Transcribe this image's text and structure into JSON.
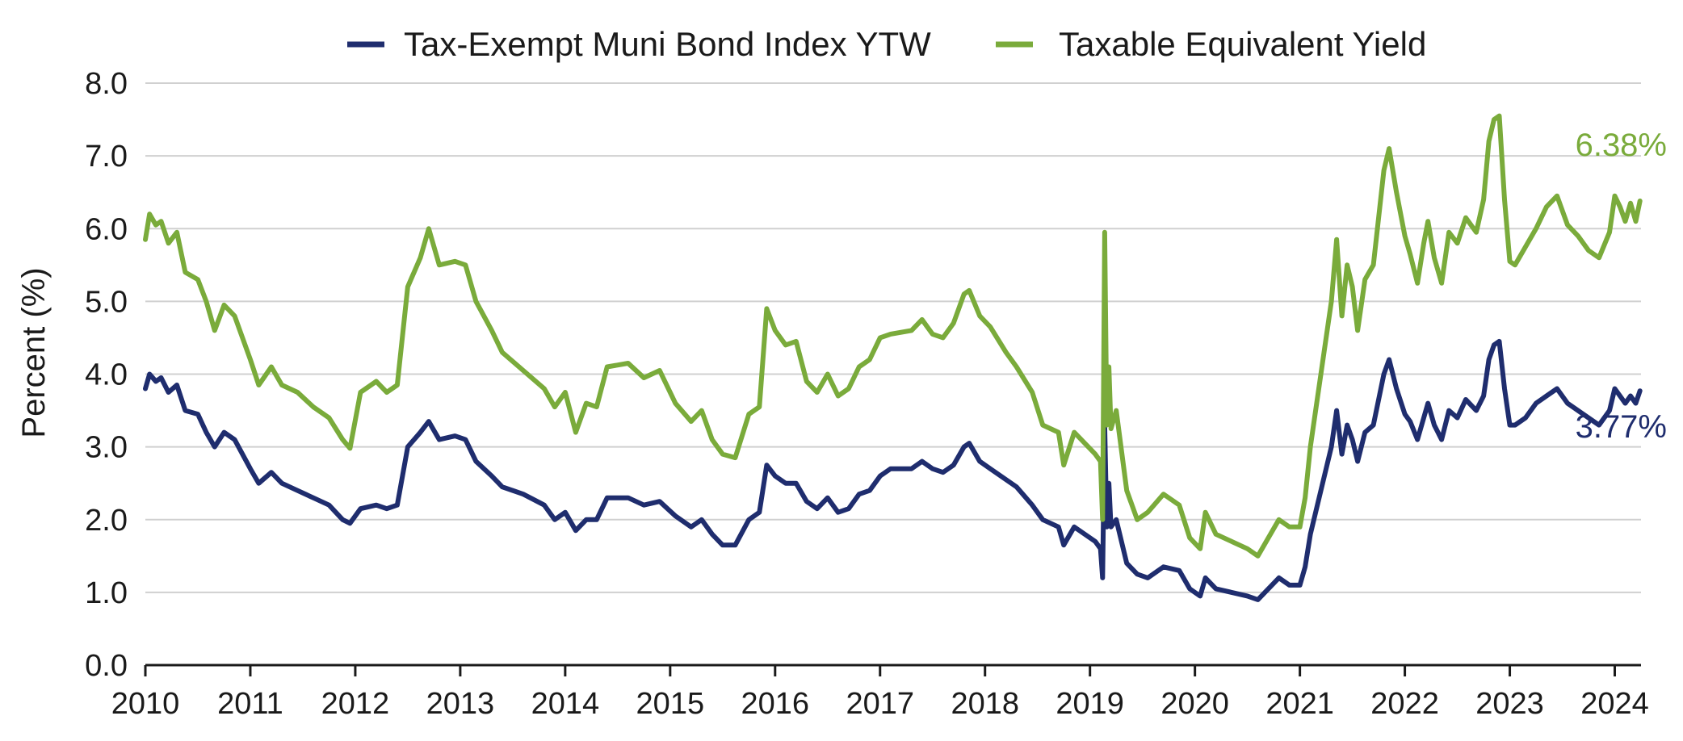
{
  "chart_data": {
    "type": "line",
    "title": "",
    "xlabel": "",
    "ylabel": "Percent (%)",
    "ylim": [
      0,
      8
    ],
    "y_ticks": [
      "0.0",
      "1.0",
      "2.0",
      "3.0",
      "4.0",
      "5.0",
      "6.0",
      "7.0",
      "8.0"
    ],
    "x_ticks": [
      "2010",
      "2011",
      "2012",
      "2013",
      "2014",
      "2015",
      "2016",
      "2017",
      "2018",
      "2019",
      "2020",
      "2021",
      "2022",
      "2023",
      "2024"
    ],
    "xlim": [
      2010.0,
      2024.25
    ],
    "grid": "horizontal",
    "legend_position": "top-center",
    "series": [
      {
        "name": "Tax-Exempt Muni Bond Index YTW",
        "color": "#1f2d6e",
        "end_label": "3.77%",
        "points": [
          [
            2010.0,
            3.8
          ],
          [
            2010.04,
            4.0
          ],
          [
            2010.1,
            3.9
          ],
          [
            2010.15,
            3.95
          ],
          [
            2010.22,
            3.75
          ],
          [
            2010.3,
            3.85
          ],
          [
            2010.38,
            3.5
          ],
          [
            2010.5,
            3.45
          ],
          [
            2010.58,
            3.2
          ],
          [
            2010.66,
            3.0
          ],
          [
            2010.75,
            3.2
          ],
          [
            2010.85,
            3.1
          ],
          [
            2011.0,
            2.7
          ],
          [
            2011.08,
            2.5
          ],
          [
            2011.2,
            2.65
          ],
          [
            2011.3,
            2.5
          ],
          [
            2011.45,
            2.4
          ],
          [
            2011.6,
            2.3
          ],
          [
            2011.75,
            2.2
          ],
          [
            2011.88,
            2.0
          ],
          [
            2011.95,
            1.95
          ],
          [
            2012.05,
            2.15
          ],
          [
            2012.2,
            2.2
          ],
          [
            2012.3,
            2.15
          ],
          [
            2012.4,
            2.2
          ],
          [
            2012.5,
            3.0
          ],
          [
            2012.62,
            3.2
          ],
          [
            2012.7,
            3.35
          ],
          [
            2012.8,
            3.1
          ],
          [
            2012.95,
            3.15
          ],
          [
            2013.05,
            3.1
          ],
          [
            2013.15,
            2.8
          ],
          [
            2013.3,
            2.6
          ],
          [
            2013.4,
            2.45
          ],
          [
            2013.6,
            2.35
          ],
          [
            2013.8,
            2.2
          ],
          [
            2013.9,
            2.0
          ],
          [
            2014.0,
            2.1
          ],
          [
            2014.1,
            1.85
          ],
          [
            2014.2,
            2.0
          ],
          [
            2014.3,
            2.0
          ],
          [
            2014.4,
            2.3
          ],
          [
            2014.6,
            2.3
          ],
          [
            2014.75,
            2.2
          ],
          [
            2014.9,
            2.25
          ],
          [
            2015.05,
            2.05
          ],
          [
            2015.2,
            1.9
          ],
          [
            2015.3,
            2.0
          ],
          [
            2015.4,
            1.8
          ],
          [
            2015.5,
            1.65
          ],
          [
            2015.62,
            1.65
          ],
          [
            2015.75,
            2.0
          ],
          [
            2015.85,
            2.1
          ],
          [
            2015.92,
            2.75
          ],
          [
            2016.0,
            2.6
          ],
          [
            2016.1,
            2.5
          ],
          [
            2016.2,
            2.5
          ],
          [
            2016.3,
            2.25
          ],
          [
            2016.4,
            2.15
          ],
          [
            2016.5,
            2.3
          ],
          [
            2016.6,
            2.1
          ],
          [
            2016.7,
            2.15
          ],
          [
            2016.8,
            2.35
          ],
          [
            2016.9,
            2.4
          ],
          [
            2017.0,
            2.6
          ],
          [
            2017.1,
            2.7
          ],
          [
            2017.3,
            2.7
          ],
          [
            2017.4,
            2.8
          ],
          [
            2017.5,
            2.7
          ],
          [
            2017.6,
            2.65
          ],
          [
            2017.7,
            2.75
          ],
          [
            2017.8,
            3.0
          ],
          [
            2017.85,
            3.05
          ],
          [
            2017.95,
            2.8
          ],
          [
            2018.05,
            2.7
          ],
          [
            2018.2,
            2.55
          ],
          [
            2018.3,
            2.45
          ],
          [
            2018.45,
            2.2
          ],
          [
            2018.55,
            2.0
          ],
          [
            2018.7,
            1.9
          ],
          [
            2018.75,
            1.65
          ],
          [
            2018.85,
            1.9
          ],
          [
            2018.95,
            1.8
          ],
          [
            2019.05,
            1.7
          ],
          [
            2019.1,
            1.6
          ],
          [
            2019.12,
            1.2
          ],
          [
            2019.14,
            3.3
          ],
          [
            2019.16,
            1.9
          ],
          [
            2019.18,
            2.5
          ],
          [
            2019.2,
            1.9
          ],
          [
            2019.25,
            2.0
          ],
          [
            2019.35,
            1.4
          ],
          [
            2019.45,
            1.25
          ],
          [
            2019.55,
            1.2
          ],
          [
            2019.7,
            1.35
          ],
          [
            2019.85,
            1.3
          ],
          [
            2019.95,
            1.05
          ],
          [
            2020.05,
            0.95
          ],
          [
            2020.1,
            1.2
          ],
          [
            2020.2,
            1.05
          ],
          [
            2020.35,
            1.0
          ],
          [
            2020.5,
            0.95
          ],
          [
            2020.6,
            0.9
          ],
          [
            2020.7,
            1.05
          ],
          [
            2020.8,
            1.2
          ],
          [
            2020.9,
            1.1
          ],
          [
            2021.0,
            1.1
          ],
          [
            2021.05,
            1.35
          ],
          [
            2021.1,
            1.8
          ],
          [
            2021.2,
            2.4
          ],
          [
            2021.3,
            3.0
          ],
          [
            2021.35,
            3.5
          ],
          [
            2021.4,
            2.9
          ],
          [
            2021.45,
            3.3
          ],
          [
            2021.5,
            3.1
          ],
          [
            2021.55,
            2.8
          ],
          [
            2021.62,
            3.2
          ],
          [
            2021.7,
            3.3
          ],
          [
            2021.8,
            4.0
          ],
          [
            2021.85,
            4.2
          ],
          [
            2021.92,
            3.8
          ],
          [
            2022.0,
            3.45
          ],
          [
            2022.05,
            3.35
          ],
          [
            2022.12,
            3.1
          ],
          [
            2022.18,
            3.4
          ],
          [
            2022.22,
            3.6
          ],
          [
            2022.28,
            3.3
          ],
          [
            2022.35,
            3.1
          ],
          [
            2022.42,
            3.5
          ],
          [
            2022.5,
            3.4
          ],
          [
            2022.58,
            3.65
          ],
          [
            2022.68,
            3.5
          ],
          [
            2022.75,
            3.7
          ],
          [
            2022.8,
            4.2
          ],
          [
            2022.85,
            4.4
          ],
          [
            2022.9,
            4.45
          ],
          [
            2022.95,
            3.8
          ],
          [
            2023.0,
            3.3
          ],
          [
            2023.05,
            3.3
          ],
          [
            2023.15,
            3.4
          ],
          [
            2023.25,
            3.6
          ],
          [
            2023.35,
            3.7
          ],
          [
            2023.45,
            3.8
          ],
          [
            2023.55,
            3.6
          ],
          [
            2023.65,
            3.5
          ],
          [
            2023.75,
            3.4
          ],
          [
            2023.85,
            3.3
          ],
          [
            2023.95,
            3.5
          ],
          [
            2024.0,
            3.8
          ],
          [
            2024.05,
            3.7
          ],
          [
            2024.1,
            3.6
          ],
          [
            2024.15,
            3.7
          ],
          [
            2024.2,
            3.6
          ],
          [
            2024.24,
            3.77
          ]
        ]
      },
      {
        "name": "Taxable Equivalent Yield",
        "color": "#7aab3b",
        "end_label": "6.38%",
        "points": [
          [
            2010.0,
            5.85
          ],
          [
            2010.04,
            6.2
          ],
          [
            2010.1,
            6.05
          ],
          [
            2010.15,
            6.1
          ],
          [
            2010.22,
            5.8
          ],
          [
            2010.3,
            5.95
          ],
          [
            2010.38,
            5.4
          ],
          [
            2010.5,
            5.3
          ],
          [
            2010.58,
            5.0
          ],
          [
            2010.66,
            4.6
          ],
          [
            2010.75,
            4.95
          ],
          [
            2010.85,
            4.8
          ],
          [
            2011.0,
            4.2
          ],
          [
            2011.08,
            3.85
          ],
          [
            2011.2,
            4.1
          ],
          [
            2011.3,
            3.85
          ],
          [
            2011.45,
            3.75
          ],
          [
            2011.6,
            3.55
          ],
          [
            2011.75,
            3.4
          ],
          [
            2011.88,
            3.1
          ],
          [
            2011.95,
            2.98
          ],
          [
            2012.05,
            3.75
          ],
          [
            2012.2,
            3.9
          ],
          [
            2012.3,
            3.75
          ],
          [
            2012.4,
            3.85
          ],
          [
            2012.5,
            5.2
          ],
          [
            2012.62,
            5.6
          ],
          [
            2012.7,
            6.0
          ],
          [
            2012.8,
            5.5
          ],
          [
            2012.95,
            5.55
          ],
          [
            2013.05,
            5.5
          ],
          [
            2013.15,
            5.0
          ],
          [
            2013.3,
            4.6
          ],
          [
            2013.4,
            4.3
          ],
          [
            2013.6,
            4.05
          ],
          [
            2013.8,
            3.8
          ],
          [
            2013.9,
            3.55
          ],
          [
            2014.0,
            3.75
          ],
          [
            2014.1,
            3.2
          ],
          [
            2014.2,
            3.6
          ],
          [
            2014.3,
            3.55
          ],
          [
            2014.4,
            4.1
          ],
          [
            2014.6,
            4.15
          ],
          [
            2014.75,
            3.95
          ],
          [
            2014.9,
            4.05
          ],
          [
            2015.05,
            3.6
          ],
          [
            2015.2,
            3.35
          ],
          [
            2015.3,
            3.5
          ],
          [
            2015.4,
            3.1
          ],
          [
            2015.5,
            2.9
          ],
          [
            2015.62,
            2.85
          ],
          [
            2015.75,
            3.45
          ],
          [
            2015.85,
            3.55
          ],
          [
            2015.92,
            4.9
          ],
          [
            2016.0,
            4.6
          ],
          [
            2016.1,
            4.4
          ],
          [
            2016.2,
            4.45
          ],
          [
            2016.3,
            3.9
          ],
          [
            2016.4,
            3.75
          ],
          [
            2016.5,
            4.0
          ],
          [
            2016.6,
            3.7
          ],
          [
            2016.7,
            3.8
          ],
          [
            2016.8,
            4.1
          ],
          [
            2016.9,
            4.2
          ],
          [
            2017.0,
            4.5
          ],
          [
            2017.1,
            4.55
          ],
          [
            2017.3,
            4.6
          ],
          [
            2017.4,
            4.75
          ],
          [
            2017.5,
            4.55
          ],
          [
            2017.6,
            4.5
          ],
          [
            2017.7,
            4.7
          ],
          [
            2017.8,
            5.1
          ],
          [
            2017.85,
            5.15
          ],
          [
            2017.95,
            4.8
          ],
          [
            2018.05,
            4.65
          ],
          [
            2018.2,
            4.3
          ],
          [
            2018.3,
            4.1
          ],
          [
            2018.45,
            3.75
          ],
          [
            2018.55,
            3.3
          ],
          [
            2018.7,
            3.2
          ],
          [
            2018.75,
            2.75
          ],
          [
            2018.85,
            3.2
          ],
          [
            2018.95,
            3.05
          ],
          [
            2019.05,
            2.9
          ],
          [
            2019.1,
            2.8
          ],
          [
            2019.12,
            2.0
          ],
          [
            2019.14,
            5.95
          ],
          [
            2019.16,
            3.3
          ],
          [
            2019.18,
            4.1
          ],
          [
            2019.2,
            3.25
          ],
          [
            2019.25,
            3.5
          ],
          [
            2019.35,
            2.4
          ],
          [
            2019.45,
            2.0
          ],
          [
            2019.55,
            2.1
          ],
          [
            2019.7,
            2.35
          ],
          [
            2019.85,
            2.2
          ],
          [
            2019.95,
            1.75
          ],
          [
            2020.05,
            1.6
          ],
          [
            2020.1,
            2.1
          ],
          [
            2020.2,
            1.8
          ],
          [
            2020.35,
            1.7
          ],
          [
            2020.5,
            1.6
          ],
          [
            2020.6,
            1.5
          ],
          [
            2020.7,
            1.75
          ],
          [
            2020.8,
            2.0
          ],
          [
            2020.9,
            1.9
          ],
          [
            2021.0,
            1.9
          ],
          [
            2021.05,
            2.3
          ],
          [
            2021.1,
            3.0
          ],
          [
            2021.2,
            4.0
          ],
          [
            2021.3,
            5.0
          ],
          [
            2021.35,
            5.85
          ],
          [
            2021.4,
            4.8
          ],
          [
            2021.45,
            5.5
          ],
          [
            2021.5,
            5.2
          ],
          [
            2021.55,
            4.6
          ],
          [
            2021.62,
            5.3
          ],
          [
            2021.7,
            5.5
          ],
          [
            2021.8,
            6.8
          ],
          [
            2021.85,
            7.1
          ],
          [
            2021.92,
            6.5
          ],
          [
            2022.0,
            5.9
          ],
          [
            2022.05,
            5.65
          ],
          [
            2022.12,
            5.25
          ],
          [
            2022.18,
            5.8
          ],
          [
            2022.22,
            6.1
          ],
          [
            2022.28,
            5.6
          ],
          [
            2022.35,
            5.25
          ],
          [
            2022.42,
            5.95
          ],
          [
            2022.5,
            5.8
          ],
          [
            2022.58,
            6.15
          ],
          [
            2022.68,
            5.95
          ],
          [
            2022.75,
            6.4
          ],
          [
            2022.8,
            7.2
          ],
          [
            2022.85,
            7.5
          ],
          [
            2022.9,
            7.55
          ],
          [
            2022.95,
            6.4
          ],
          [
            2023.0,
            5.55
          ],
          [
            2023.05,
            5.5
          ],
          [
            2023.15,
            5.75
          ],
          [
            2023.25,
            6.0
          ],
          [
            2023.35,
            6.3
          ],
          [
            2023.45,
            6.45
          ],
          [
            2023.55,
            6.05
          ],
          [
            2023.65,
            5.9
          ],
          [
            2023.75,
            5.7
          ],
          [
            2023.85,
            5.6
          ],
          [
            2023.95,
            5.95
          ],
          [
            2024.0,
            6.45
          ],
          [
            2024.05,
            6.3
          ],
          [
            2024.1,
            6.1
          ],
          [
            2024.15,
            6.35
          ],
          [
            2024.2,
            6.1
          ],
          [
            2024.24,
            6.38
          ]
        ]
      }
    ]
  }
}
